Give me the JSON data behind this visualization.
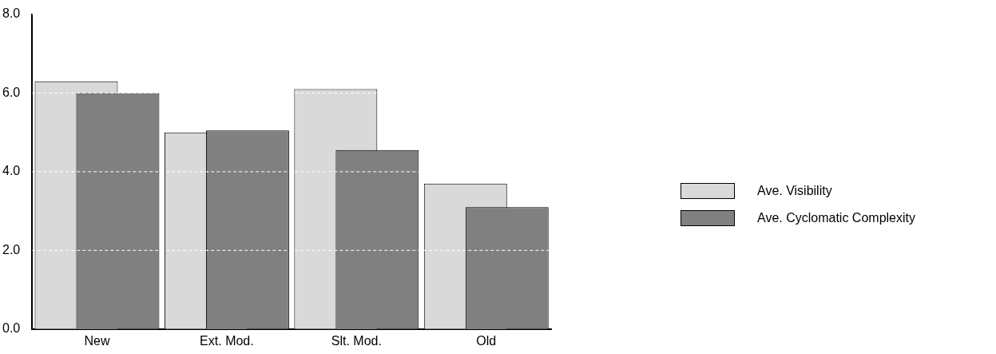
{
  "chart_data": {
    "type": "bar",
    "categories": [
      "New",
      "Ext. Mod.",
      "Slt. Mod.",
      "Old"
    ],
    "series": [
      {
        "name": "Ave. Visibility",
        "color": "#d9d9d9",
        "values": [
          6.3,
          5.0,
          6.1,
          3.7
        ]
      },
      {
        "name": "Ave. Cyclomatic Complexity",
        "color": "#808080",
        "values": [
          6.0,
          5.05,
          4.55,
          3.1
        ]
      }
    ],
    "ylim": [
      0,
      8
    ],
    "yticks": [
      {
        "value": 0,
        "label": "0.0"
      },
      {
        "value": 2,
        "label": "2.0"
      },
      {
        "value": 4,
        "label": "4.0"
      },
      {
        "value": 6,
        "label": "6.0"
      },
      {
        "value": 8,
        "label": "8.0"
      }
    ],
    "grid": "y",
    "legend": "right"
  }
}
